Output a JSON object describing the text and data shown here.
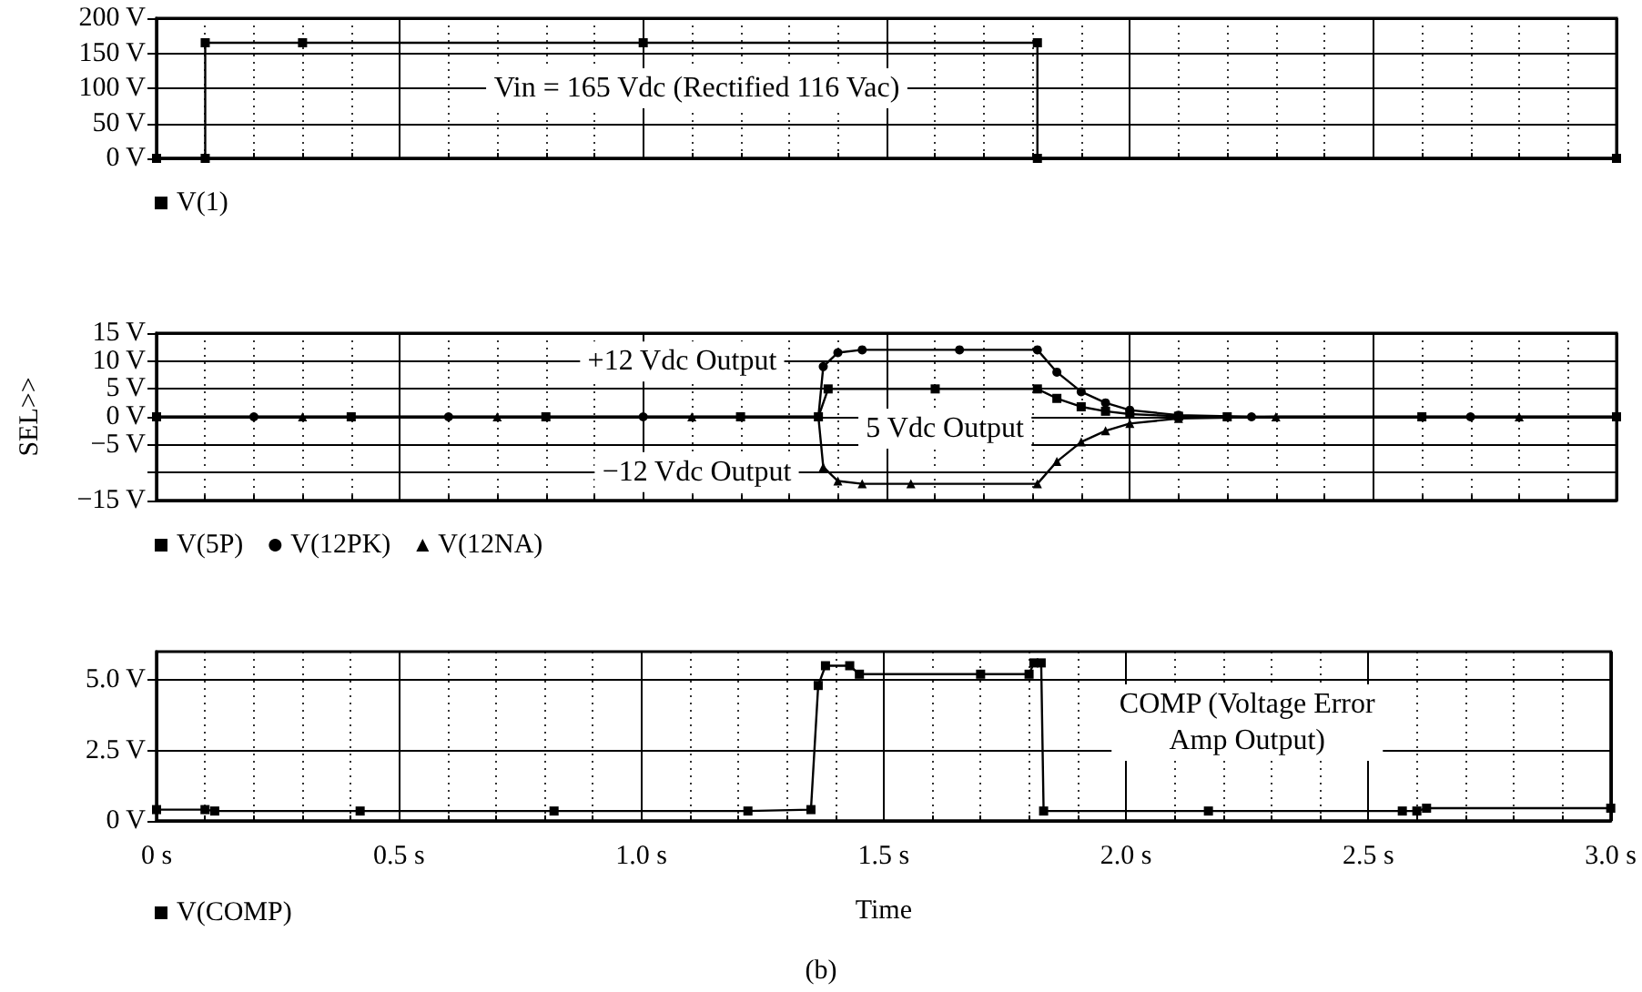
{
  "chart_data": [
    {
      "type": "line",
      "xlim": [
        0,
        3
      ],
      "xticks": [
        {
          "value": 0,
          "label": null
        },
        {
          "value": 0.5,
          "label": null
        },
        {
          "value": 1,
          "label": null
        },
        {
          "value": 1.5,
          "label": null
        },
        {
          "value": 2,
          "label": null
        },
        {
          "value": 2.5,
          "label": null
        },
        {
          "value": 3,
          "label": null
        }
      ],
      "ylim": [
        0,
        200
      ],
      "yticks": [
        {
          "value": 0,
          "label": "0 V"
        },
        {
          "value": 50,
          "label": "50 V"
        },
        {
          "value": 100,
          "label": "100 V"
        },
        {
          "value": 150,
          "label": "150 V"
        },
        {
          "value": 200,
          "label": "200 V"
        }
      ],
      "tick_labels": "y",
      "grid": true,
      "legend": "bottom left",
      "line_style": "solid",
      "series": [
        {
          "name": "V(1)",
          "color": "#000000",
          "marker": "square",
          "x": [
            0,
            0.1,
            0.1,
            0.3,
            1.0,
            1.81,
            1.81,
            3.0
          ],
          "values": [
            0,
            0,
            165,
            165,
            165,
            165,
            0,
            0
          ]
        }
      ],
      "annotations": [
        "Vin = 165 Vdc (Rectified 116 Vac)"
      ]
    },
    {
      "type": "line",
      "xlim": [
        0,
        3
      ],
      "xticks": [
        {
          "value": 0,
          "label": null
        },
        {
          "value": 0.5,
          "label": null
        },
        {
          "value": 1,
          "label": null
        },
        {
          "value": 1.5,
          "label": null
        },
        {
          "value": 2,
          "label": null
        },
        {
          "value": 2.5,
          "label": null
        },
        {
          "value": 3,
          "label": null
        }
      ],
      "ylim": [
        -15,
        15
      ],
      "yticks": [
        {
          "value": -15,
          "label": "−15 V"
        },
        {
          "value": -10,
          "label": null
        },
        {
          "value": -5,
          "label": "−5 V"
        },
        {
          "value": 0,
          "label": "0 V"
        },
        {
          "value": 5,
          "label": "5 V"
        },
        {
          "value": 10,
          "label": "10 V"
        },
        {
          "value": 15,
          "label": "15 V"
        }
      ],
      "ylabel": "SEL>>",
      "tick_labels": "y",
      "grid": true,
      "legend": "bottom left",
      "line_style": "solid",
      "series": [
        {
          "name": "V(5P)",
          "color": "#000000",
          "marker": "square",
          "x": [
            0,
            0.4,
            0.8,
            1.2,
            1.36,
            1.38,
            1.6,
            1.81,
            1.85,
            1.9,
            1.95,
            2.0,
            2.1,
            2.2,
            2.6,
            3.0
          ],
          "values": [
            0,
            0,
            0,
            0,
            0,
            5,
            5,
            5,
            3.3,
            1.8,
            1,
            0.5,
            0.1,
            0,
            0,
            0
          ]
        },
        {
          "name": "V(12PK)",
          "color": "#000000",
          "marker": "circle",
          "x": [
            0,
            0.2,
            0.6,
            1.0,
            1.36,
            1.37,
            1.4,
            1.45,
            1.65,
            1.81,
            1.85,
            1.9,
            1.95,
            2.0,
            2.1,
            2.25,
            2.7,
            3.0
          ],
          "values": [
            0,
            0,
            0,
            0,
            0,
            9,
            11.5,
            12,
            12,
            12,
            8,
            4.5,
            2.5,
            1.2,
            0.3,
            0,
            0,
            0
          ]
        },
        {
          "name": "V(12NA)",
          "color": "#000000",
          "marker": "triangle",
          "x": [
            0,
            0.3,
            0.7,
            1.1,
            1.36,
            1.37,
            1.4,
            1.45,
            1.55,
            1.81,
            1.85,
            1.9,
            1.95,
            2.0,
            2.1,
            2.3,
            2.8,
            3.0
          ],
          "values": [
            0,
            0,
            0,
            0,
            0,
            -9,
            -11.5,
            -12,
            -12,
            -12,
            -8,
            -4.5,
            -2.5,
            -1.2,
            -0.3,
            0,
            0,
            0
          ]
        }
      ],
      "annotations": [
        "+12 Vdc Output",
        "5 Vdc Output",
        "−12 Vdc Output"
      ]
    },
    {
      "type": "line",
      "xlim": [
        0,
        3
      ],
      "xticks": [
        {
          "value": 0,
          "label": "0 s"
        },
        {
          "value": 0.5,
          "label": "0.5 s"
        },
        {
          "value": 1,
          "label": "1.0 s"
        },
        {
          "value": 1.5,
          "label": "1.5 s"
        },
        {
          "value": 2,
          "label": "2.0 s"
        },
        {
          "value": 2.5,
          "label": "2.5 s"
        },
        {
          "value": 3,
          "label": "3.0 s"
        }
      ],
      "ylim": [
        0,
        6
      ],
      "yticks": [
        {
          "value": 0,
          "label": "0 V"
        },
        {
          "value": 2.5,
          "label": "2.5 V"
        },
        {
          "value": 5,
          "label": "5.0 V"
        }
      ],
      "xlabel": "Time",
      "grid": true,
      "legend": "bottom left",
      "line_style": "solid",
      "series": [
        {
          "name": "V(COMP)",
          "color": "#000000",
          "marker": "square",
          "x": [
            0,
            0.1,
            0.12,
            0.42,
            0.82,
            1.22,
            1.35,
            1.365,
            1.38,
            1.43,
            1.45,
            1.7,
            1.8,
            1.81,
            1.825,
            1.83,
            2.17,
            2.57,
            2.6,
            2.62,
            3.0
          ],
          "values": [
            0.4,
            0.4,
            0.35,
            0.35,
            0.35,
            0.35,
            0.4,
            4.8,
            5.5,
            5.5,
            5.2,
            5.2,
            5.2,
            5.6,
            5.6,
            0.35,
            0.35,
            0.35,
            0.35,
            0.45,
            0.45
          ]
        }
      ],
      "annotations": [
        "COMP (Voltage Error\nAmp Output)",
        "(b)"
      ]
    }
  ]
}
